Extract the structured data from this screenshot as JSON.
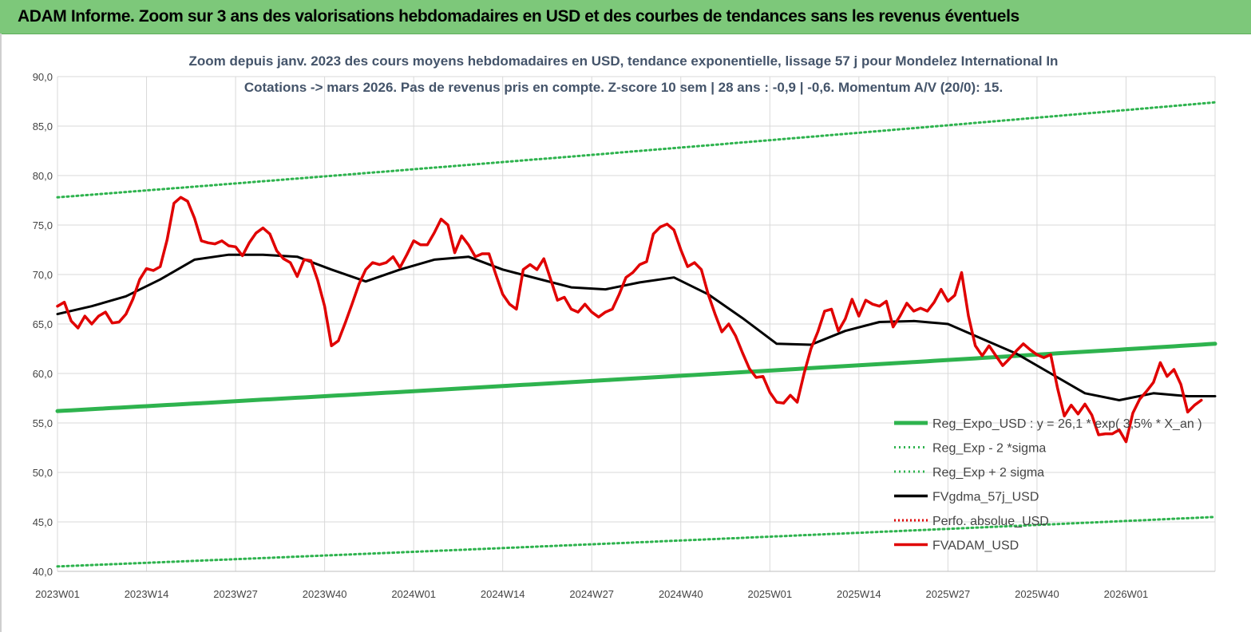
{
  "header": {
    "title": "ADAM Informe. Zoom sur 3 ans des valorisations hebdomadaires en USD et des courbes de tendances sans les revenus éventuels"
  },
  "chart_data": {
    "type": "line",
    "title_line1": "Zoom depuis janv. 2023 des cours moyens hebdomadaires en USD, tendance exponentielle, lissage 57 j pour Mondelez International In",
    "title_line2": "Cotations -> mars 2026. Pas de revenus pris en compte. Z-score 10 sem | 28 ans : -0,9 | -0,6. Momentum A/V (20/0): 15.",
    "ylim": [
      40,
      90
    ],
    "y_ticks": [
      "40,0",
      "45,0",
      "50,0",
      "55,0",
      "60,0",
      "65,0",
      "70,0",
      "75,0",
      "80,0",
      "85,0",
      "90,0"
    ],
    "x_tick_labels": [
      "2023W01",
      "2023W14",
      "2023W27",
      "2023W40",
      "2024W01",
      "2024W14",
      "2024W27",
      "2024W40",
      "2025W01",
      "2025W14",
      "2025W27",
      "2025W40",
      "2026W01"
    ],
    "x_tick_index": [
      0,
      13,
      26,
      39,
      52,
      65,
      78,
      91,
      104,
      117,
      130,
      143,
      156
    ],
    "n_points": 170,
    "grid": true,
    "legend_position": "bottom-right",
    "colors": {
      "reg_expo": "#2eb34e",
      "band": "#2eb34e",
      "smooth": "#000000",
      "perf": "#e00000",
      "price": "#e00000",
      "grid": "#d9d9d9"
    },
    "series": [
      {
        "key": "reg_expo",
        "name": "Reg_Expo_USD : y = 26,1 * exp( 3,5% *  X_an )",
        "anchors": [
          [
            0,
            56.2
          ],
          [
            169,
            63.0
          ]
        ]
      },
      {
        "key": "band_low",
        "name": "Reg_Exp - 2 *sigma",
        "anchors": [
          [
            0,
            40.5
          ],
          [
            169,
            45.5
          ]
        ]
      },
      {
        "key": "band_high",
        "name": "Reg_Exp + 2 sigma",
        "anchors": [
          [
            0,
            77.8
          ],
          [
            169,
            87.4
          ]
        ]
      },
      {
        "key": "smooth",
        "name": "FVgdma_57j_USD",
        "anchors": [
          [
            0,
            66.0
          ],
          [
            5,
            66.8
          ],
          [
            10,
            67.8
          ],
          [
            15,
            69.5
          ],
          [
            20,
            71.5
          ],
          [
            25,
            72.0
          ],
          [
            30,
            72.0
          ],
          [
            35,
            71.8
          ],
          [
            40,
            70.5
          ],
          [
            45,
            69.3
          ],
          [
            50,
            70.5
          ],
          [
            55,
            71.5
          ],
          [
            60,
            71.8
          ],
          [
            65,
            70.5
          ],
          [
            70,
            69.6
          ],
          [
            75,
            68.7
          ],
          [
            80,
            68.5
          ],
          [
            85,
            69.2
          ],
          [
            90,
            69.7
          ],
          [
            95,
            68.0
          ],
          [
            100,
            65.6
          ],
          [
            105,
            63.0
          ],
          [
            110,
            62.9
          ],
          [
            115,
            64.3
          ],
          [
            120,
            65.2
          ],
          [
            125,
            65.3
          ],
          [
            130,
            65.0
          ],
          [
            135,
            63.5
          ],
          [
            140,
            62.0
          ],
          [
            145,
            60.0
          ],
          [
            150,
            58.0
          ],
          [
            155,
            57.3
          ],
          [
            160,
            58.0
          ],
          [
            165,
            57.7
          ],
          [
            169,
            57.7
          ]
        ]
      },
      {
        "key": "perf",
        "name": "Perfo. absolue_USD",
        "anchors": []
      },
      {
        "key": "price",
        "name": "FVADAM_USD",
        "anchors": [
          [
            0,
            66.8
          ],
          [
            1,
            67.2
          ],
          [
            2,
            65.3
          ],
          [
            3,
            64.6
          ],
          [
            4,
            65.8
          ],
          [
            5,
            65.0
          ],
          [
            6,
            65.8
          ],
          [
            7,
            66.2
          ],
          [
            8,
            65.1
          ],
          [
            9,
            65.2
          ],
          [
            10,
            66.0
          ],
          [
            11,
            67.5
          ],
          [
            12,
            69.5
          ],
          [
            13,
            70.6
          ],
          [
            14,
            70.4
          ],
          [
            15,
            70.8
          ],
          [
            16,
            73.5
          ],
          [
            17,
            77.2
          ],
          [
            18,
            77.8
          ],
          [
            19,
            77.4
          ],
          [
            20,
            75.7
          ],
          [
            21,
            73.4
          ],
          [
            22,
            73.2
          ],
          [
            23,
            73.1
          ],
          [
            24,
            73.4
          ],
          [
            25,
            72.9
          ],
          [
            26,
            72.8
          ],
          [
            27,
            71.9
          ],
          [
            28,
            73.2
          ],
          [
            29,
            74.2
          ],
          [
            30,
            74.7
          ],
          [
            31,
            74.1
          ],
          [
            32,
            72.4
          ],
          [
            33,
            71.6
          ],
          [
            34,
            71.2
          ],
          [
            35,
            69.8
          ],
          [
            36,
            71.5
          ],
          [
            37,
            71.4
          ],
          [
            38,
            69.4
          ],
          [
            39,
            66.8
          ],
          [
            40,
            62.8
          ],
          [
            41,
            63.3
          ],
          [
            42,
            65.1
          ],
          [
            43,
            67.0
          ],
          [
            44,
            69.0
          ],
          [
            45,
            70.5
          ],
          [
            46,
            71.2
          ],
          [
            47,
            71.0
          ],
          [
            48,
            71.2
          ],
          [
            49,
            71.8
          ],
          [
            50,
            70.7
          ],
          [
            51,
            72.0
          ],
          [
            52,
            73.4
          ],
          [
            53,
            73.0
          ],
          [
            54,
            73.0
          ],
          [
            55,
            74.2
          ],
          [
            56,
            75.6
          ],
          [
            57,
            75.0
          ],
          [
            58,
            72.2
          ],
          [
            59,
            73.9
          ],
          [
            60,
            73.0
          ],
          [
            61,
            71.8
          ],
          [
            62,
            72.1
          ],
          [
            63,
            72.1
          ],
          [
            64,
            70.0
          ],
          [
            65,
            68.0
          ],
          [
            66,
            67.0
          ],
          [
            67,
            66.5
          ],
          [
            68,
            70.5
          ],
          [
            69,
            71.0
          ],
          [
            70,
            70.5
          ],
          [
            71,
            71.6
          ],
          [
            72,
            69.5
          ],
          [
            73,
            67.4
          ],
          [
            74,
            67.7
          ],
          [
            75,
            66.5
          ],
          [
            76,
            66.2
          ],
          [
            77,
            67.0
          ],
          [
            78,
            66.2
          ],
          [
            79,
            65.7
          ],
          [
            80,
            66.2
          ],
          [
            81,
            66.5
          ],
          [
            82,
            68.0
          ],
          [
            83,
            69.7
          ],
          [
            84,
            70.2
          ],
          [
            85,
            71.0
          ],
          [
            86,
            71.3
          ],
          [
            87,
            74.1
          ],
          [
            88,
            74.8
          ],
          [
            89,
            75.1
          ],
          [
            90,
            74.5
          ],
          [
            91,
            72.5
          ],
          [
            92,
            70.8
          ],
          [
            93,
            71.2
          ],
          [
            94,
            70.5
          ],
          [
            95,
            68.0
          ],
          [
            96,
            66.0
          ],
          [
            97,
            64.2
          ],
          [
            98,
            65.0
          ],
          [
            99,
            63.8
          ],
          [
            100,
            62.1
          ],
          [
            101,
            60.5
          ],
          [
            102,
            59.6
          ],
          [
            103,
            59.7
          ],
          [
            104,
            58.1
          ],
          [
            105,
            57.1
          ],
          [
            106,
            57.0
          ],
          [
            107,
            57.8
          ],
          [
            108,
            57.1
          ],
          [
            109,
            60.0
          ],
          [
            110,
            62.5
          ],
          [
            111,
            64.2
          ],
          [
            112,
            66.3
          ],
          [
            113,
            66.5
          ],
          [
            114,
            64.3
          ],
          [
            115,
            65.5
          ],
          [
            116,
            67.5
          ],
          [
            117,
            65.8
          ],
          [
            118,
            67.4
          ],
          [
            119,
            67.0
          ],
          [
            120,
            66.8
          ],
          [
            121,
            67.3
          ],
          [
            122,
            64.7
          ],
          [
            123,
            65.8
          ],
          [
            124,
            67.1
          ],
          [
            125,
            66.3
          ],
          [
            126,
            66.6
          ],
          [
            127,
            66.3
          ],
          [
            128,
            67.2
          ],
          [
            129,
            68.5
          ],
          [
            130,
            67.3
          ],
          [
            131,
            67.9
          ],
          [
            132,
            70.2
          ],
          [
            133,
            65.8
          ],
          [
            134,
            62.8
          ],
          [
            135,
            61.8
          ],
          [
            136,
            62.8
          ],
          [
            137,
            61.8
          ],
          [
            138,
            60.8
          ],
          [
            139,
            61.5
          ],
          [
            140,
            62.3
          ],
          [
            141,
            63.0
          ],
          [
            142,
            62.4
          ],
          [
            143,
            61.9
          ],
          [
            144,
            61.6
          ],
          [
            145,
            61.9
          ],
          [
            146,
            58.5
          ],
          [
            147,
            55.7
          ],
          [
            148,
            56.8
          ],
          [
            149,
            55.9
          ],
          [
            150,
            56.9
          ],
          [
            151,
            55.8
          ],
          [
            152,
            53.8
          ],
          [
            153,
            53.9
          ],
          [
            154,
            53.9
          ],
          [
            155,
            54.3
          ],
          [
            156,
            53.1
          ],
          [
            157,
            56.0
          ],
          [
            158,
            57.4
          ],
          [
            159,
            58.2
          ],
          [
            160,
            59.1
          ],
          [
            161,
            61.1
          ],
          [
            162,
            59.7
          ],
          [
            163,
            60.4
          ],
          [
            164,
            58.9
          ],
          [
            165,
            56.1
          ],
          [
            166,
            56.8
          ],
          [
            167,
            57.3
          ]
        ]
      }
    ]
  }
}
